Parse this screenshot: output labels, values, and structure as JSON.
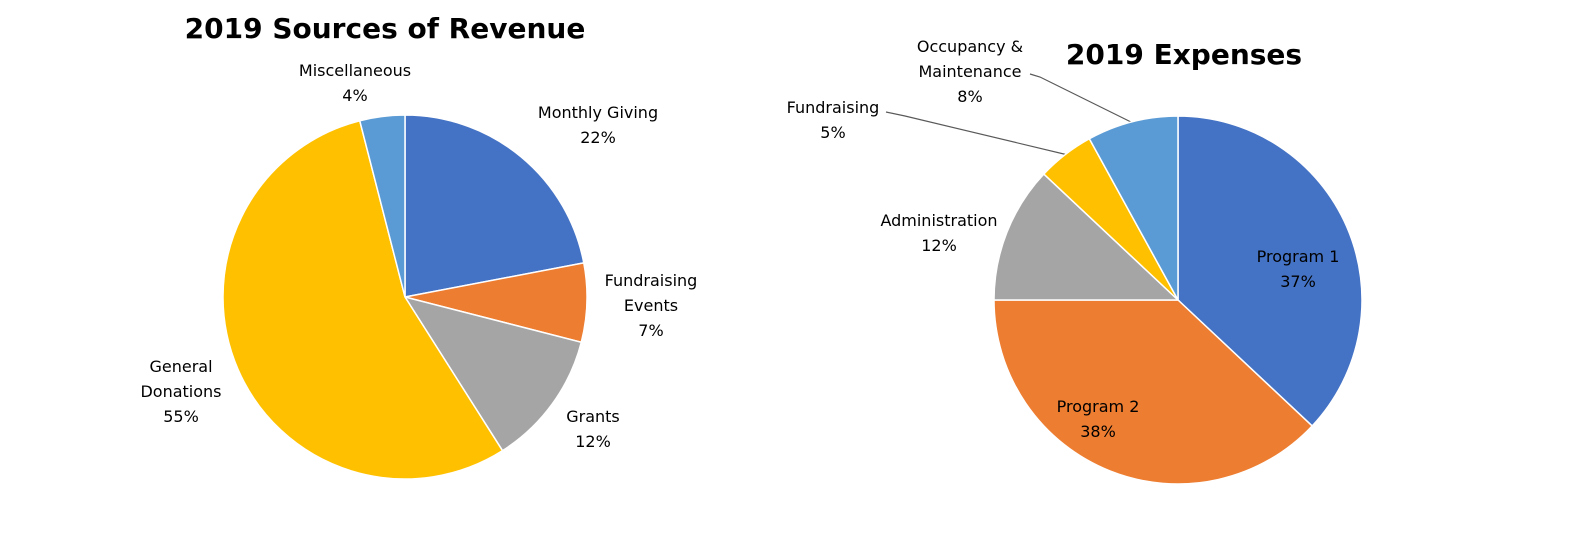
{
  "chart_data": [
    {
      "type": "pie",
      "title": "2019 Sources of Revenue",
      "slices": [
        {
          "name": "Monthly Giving",
          "label_lines": [
            "Monthly Giving",
            "22%"
          ],
          "value": 22,
          "color": "#4472C4"
        },
        {
          "name": "Fundraising Events",
          "label_lines": [
            "Fundraising",
            "Events",
            "7%"
          ],
          "value": 7,
          "color": "#ED7D31"
        },
        {
          "name": "Grants",
          "label_lines": [
            "Grants",
            "12%"
          ],
          "value": 12,
          "color": "#A5A5A5"
        },
        {
          "name": "General Donations",
          "label_lines": [
            "General",
            "Donations",
            "55%"
          ],
          "value": 55,
          "color": "#FFC000"
        },
        {
          "name": "Miscellaneous",
          "label_lines": [
            "Miscellaneous",
            "4%"
          ],
          "value": 4,
          "color": "#5B9BD5"
        }
      ],
      "legend": "none"
    },
    {
      "type": "pie",
      "title": "2019 Expenses",
      "slices": [
        {
          "name": "Program 1",
          "label_lines": [
            "Program 1",
            "37%"
          ],
          "value": 37,
          "color": "#4472C4"
        },
        {
          "name": "Program 2",
          "label_lines": [
            "Program 2",
            "38%"
          ],
          "value": 38,
          "color": "#ED7D31"
        },
        {
          "name": "Administration",
          "label_lines": [
            "Administration",
            "12%"
          ],
          "value": 12,
          "color": "#A5A5A5"
        },
        {
          "name": "Fundraising",
          "label_lines": [
            "Fundraising",
            "5%"
          ],
          "value": 5,
          "color": "#FFC000"
        },
        {
          "name": "Occupancy & Maintenance",
          "label_lines": [
            "Occupancy &",
            "Maintenance",
            "8%"
          ],
          "value": 8,
          "color": "#5B9BD5"
        }
      ],
      "legend": "none"
    }
  ]
}
